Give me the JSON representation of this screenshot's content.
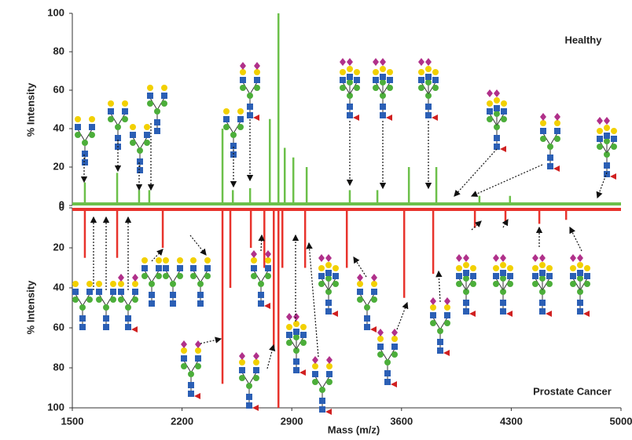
{
  "chart_data": [
    {
      "type": "bar",
      "label": "Healthy",
      "ylabel": "% Intensity",
      "color": "#6cc04a",
      "inverted": false,
      "xlim": [
        1500,
        5000
      ],
      "ylim": [
        0,
        100
      ],
      "yticks": [
        0,
        20,
        40,
        60,
        80,
        100
      ],
      "x": [
        1580,
        1786,
        1926,
        1991,
        2458,
        2524,
        2634,
        2760,
        2815,
        2855,
        2910,
        2995,
        3270,
        3446,
        3647,
        3822,
        4097,
        4292
      ],
      "values": [
        12,
        17,
        8,
        8,
        40,
        8,
        9,
        45,
        100,
        30,
        25,
        20,
        8,
        8,
        20,
        20,
        5,
        5
      ]
    },
    {
      "type": "bar",
      "label": "Prostate Cancer",
      "ylabel": "% Intensity",
      "xlabel": "Mass (m/z)",
      "color": "#e8332c",
      "inverted": true,
      "xlim": [
        1500,
        5000
      ],
      "xticks": [
        1500,
        2200,
        2900,
        3600,
        4300,
        5000
      ],
      "ylim": [
        0,
        100
      ],
      "yticks": [
        0,
        20,
        40,
        60,
        80,
        100
      ],
      "x": [
        1580,
        1786,
        2077,
        2458,
        2508,
        2639,
        2725,
        2785,
        2815,
        2840,
        2985,
        3251,
        3617,
        3802,
        4068,
        4263,
        4479,
        4650
      ],
      "values": [
        25,
        25,
        20,
        88,
        40,
        20,
        30,
        70,
        100,
        30,
        30,
        30,
        45,
        33,
        10,
        8,
        8,
        6
      ]
    }
  ]
}
